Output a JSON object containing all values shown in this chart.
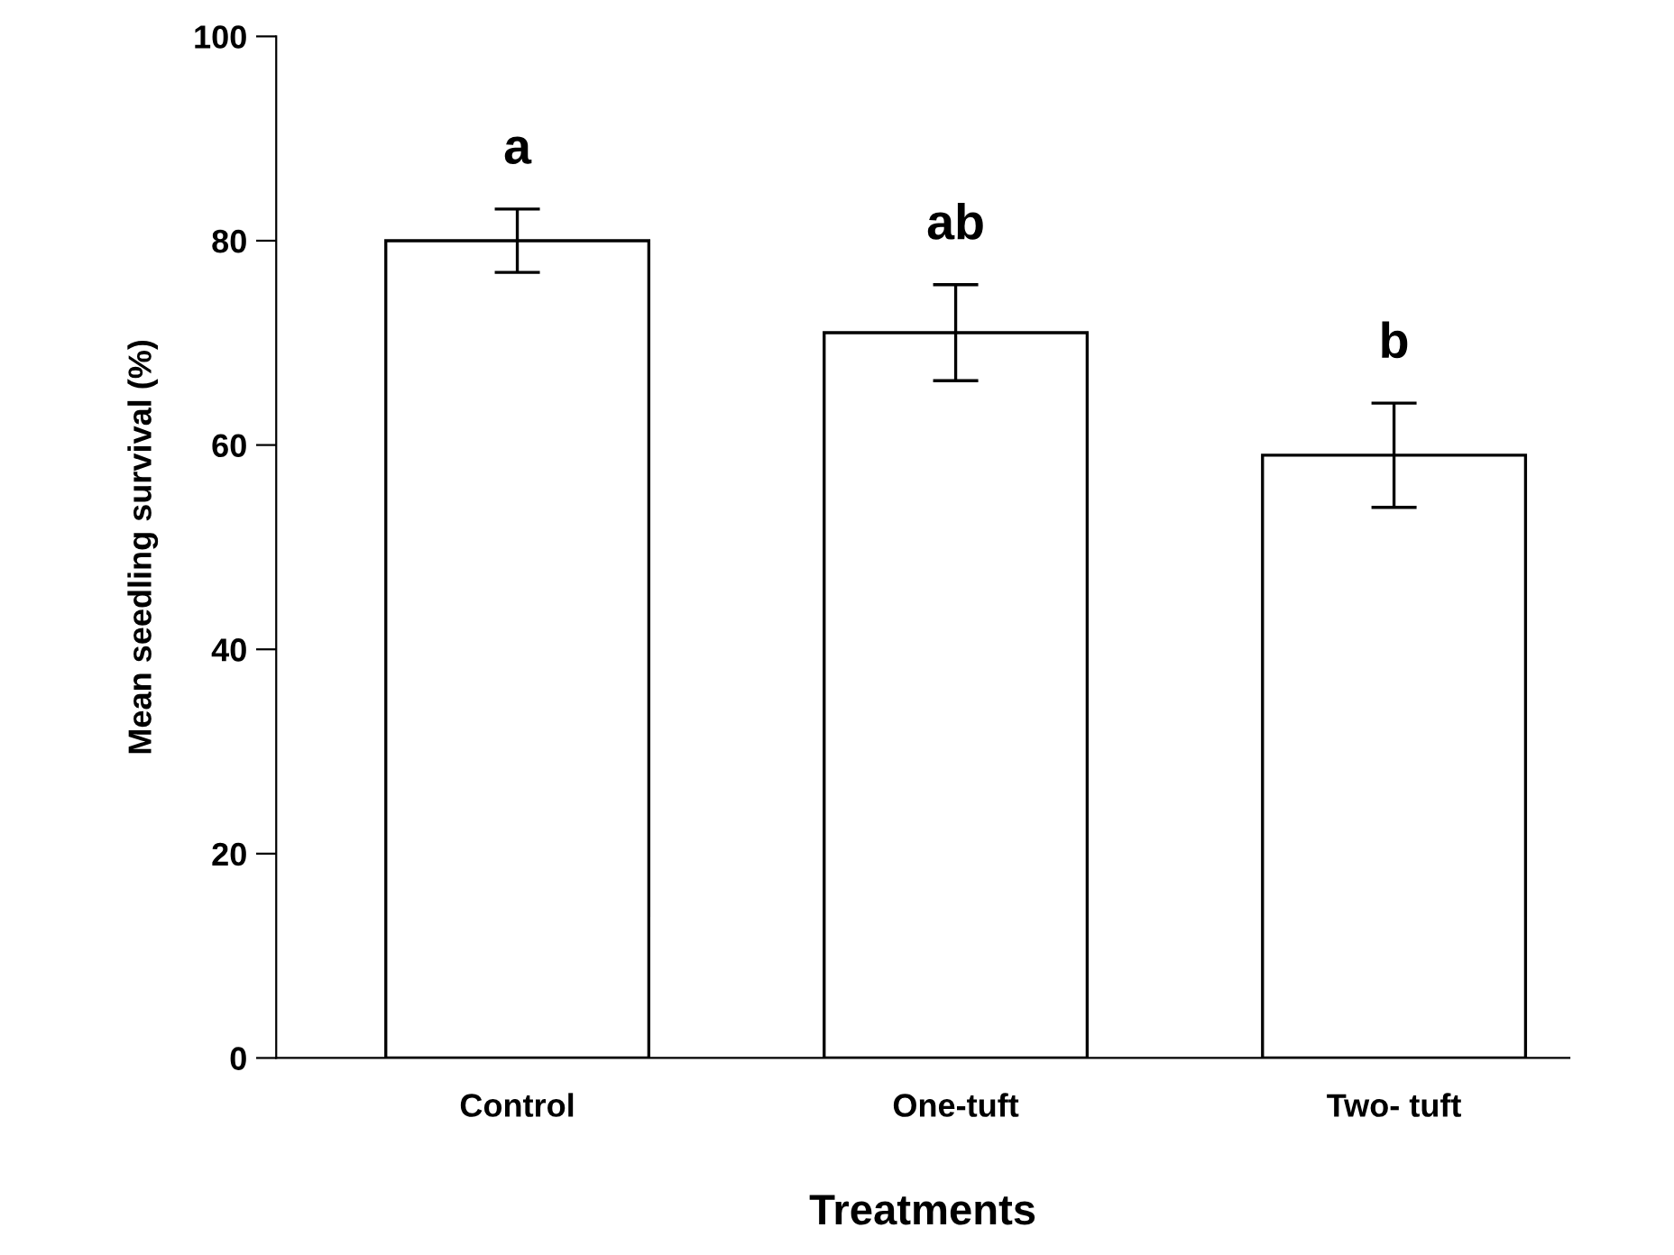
{
  "chart_data": {
    "type": "bar",
    "xlabel": "Treatments",
    "ylabel": "Mean seedling survival (%)",
    "categories": [
      "Control",
      "One-tuft",
      "Two- tuft"
    ],
    "values": [
      80,
      71,
      59
    ],
    "errors": [
      3.1,
      4.7,
      5.1
    ],
    "color": "#ffffff",
    "ylim": [
      0,
      100
    ],
    "yticks": [
      0,
      20,
      40,
      60,
      80,
      100
    ],
    "grid": false,
    "annotations": [
      "a",
      "ab",
      "b"
    ]
  }
}
